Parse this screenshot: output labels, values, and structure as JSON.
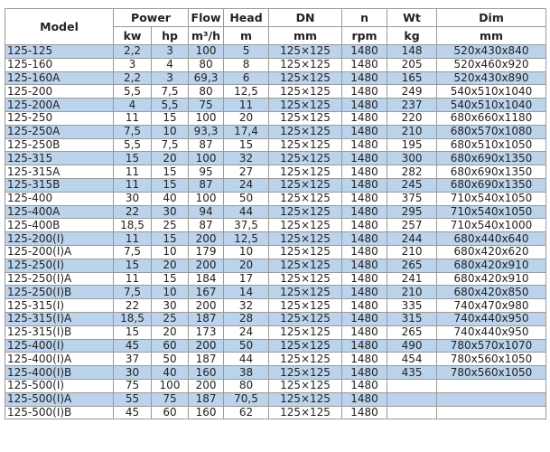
{
  "header": {
    "model": "Model",
    "groups": [
      "Power",
      "Flow",
      "Head",
      "DN",
      "n",
      "Wt",
      "Dim"
    ],
    "units": [
      "kw",
      "hp",
      "m³/h",
      "m",
      "mm",
      "rpm",
      "kg",
      "mm"
    ]
  },
  "colors": {
    "stripe": "#bcd3ec",
    "border": "#9a9a9a"
  },
  "rows": [
    [
      "125-125",
      "2,2",
      "3",
      "100",
      "5",
      "125×125",
      "1480",
      "148",
      "520x430x840"
    ],
    [
      "125-160",
      "3",
      "4",
      "80",
      "8",
      "125×125",
      "1480",
      "205",
      "520x460x920"
    ],
    [
      "125-160A",
      "2,2",
      "3",
      "69,3",
      "6",
      "125×125",
      "1480",
      "165",
      "520x430x890"
    ],
    [
      "125-200",
      "5,5",
      "7,5",
      "80",
      "12,5",
      "125×125",
      "1480",
      "249",
      "540x510x1040"
    ],
    [
      "125-200A",
      "4",
      "5,5",
      "75",
      "11",
      "125×125",
      "1480",
      "237",
      "540x510x1040"
    ],
    [
      "125-250",
      "11",
      "15",
      "100",
      "20",
      "125×125",
      "1480",
      "220",
      "680x660x1180"
    ],
    [
      "125-250A",
      "7,5",
      "10",
      "93,3",
      "17,4",
      "125×125",
      "1480",
      "210",
      "680x570x1080"
    ],
    [
      "125-250B",
      "5,5",
      "7,5",
      "87",
      "15",
      "125×125",
      "1480",
      "195",
      "680x510x1050"
    ],
    [
      "125-315",
      "15",
      "20",
      "100",
      "32",
      "125×125",
      "1480",
      "300",
      "680x690x1350"
    ],
    [
      "125-315A",
      "11",
      "15",
      "95",
      "27",
      "125×125",
      "1480",
      "282",
      "680x690x1350"
    ],
    [
      "125-315B",
      "11",
      "15",
      "87",
      "24",
      "125×125",
      "1480",
      "245",
      "680x690x1350"
    ],
    [
      "125-400",
      "30",
      "40",
      "100",
      "50",
      "125×125",
      "1480",
      "375",
      "710x540x1050"
    ],
    [
      "125-400A",
      "22",
      "30",
      "94",
      "44",
      "125×125",
      "1480",
      "295",
      "710x540x1050"
    ],
    [
      "125-400B",
      "18,5",
      "25",
      "87",
      "37,5",
      "125×125",
      "1480",
      "257",
      "710x540x1000"
    ],
    [
      "125-200(I)",
      "11",
      "15",
      "200",
      "12,5",
      "125×125",
      "1480",
      "244",
      "680x440x640"
    ],
    [
      "125-200(I)A",
      "7,5",
      "10",
      "179",
      "10",
      "125×125",
      "1480",
      "210",
      "680x420x620"
    ],
    [
      "125-250(I)",
      "15",
      "20",
      "200",
      "20",
      "125×125",
      "1480",
      "265",
      "680x420x910"
    ],
    [
      "125-250(I)A",
      "11",
      "15",
      "184",
      "17",
      "125×125",
      "1480",
      "241",
      "680x420x910"
    ],
    [
      "125-250(I)B",
      "7,5",
      "10",
      "167",
      "14",
      "125×125",
      "1480",
      "210",
      "680x420x850"
    ],
    [
      "125-315(I)",
      "22",
      "30",
      "200",
      "32",
      "125×125",
      "1480",
      "335",
      "740x470x980"
    ],
    [
      "125-315(I)A",
      "18,5",
      "25",
      "187",
      "28",
      "125×125",
      "1480",
      "315",
      "740x440x950"
    ],
    [
      "125-315(I)B",
      "15",
      "20",
      "173",
      "24",
      "125×125",
      "1480",
      "265",
      "740x440x950"
    ],
    [
      "125-400(I)",
      "45",
      "60",
      "200",
      "50",
      "125×125",
      "1480",
      "490",
      "780x570x1070"
    ],
    [
      "125-400(I)A",
      "37",
      "50",
      "187",
      "44",
      "125×125",
      "1480",
      "454",
      "780x560x1050"
    ],
    [
      "125-400(I)B",
      "30",
      "40",
      "160",
      "38",
      "125×125",
      "1480",
      "435",
      "780x560x1050"
    ],
    [
      "125-500(I)",
      "75",
      "100",
      "200",
      "80",
      "125×125",
      "1480",
      "",
      ""
    ],
    [
      "125-500(I)A",
      "55",
      "75",
      "187",
      "70,5",
      "125×125",
      "1480",
      "",
      ""
    ],
    [
      "125-500(I)B",
      "45",
      "60",
      "160",
      "62",
      "125×125",
      "1480",
      "",
      ""
    ]
  ]
}
